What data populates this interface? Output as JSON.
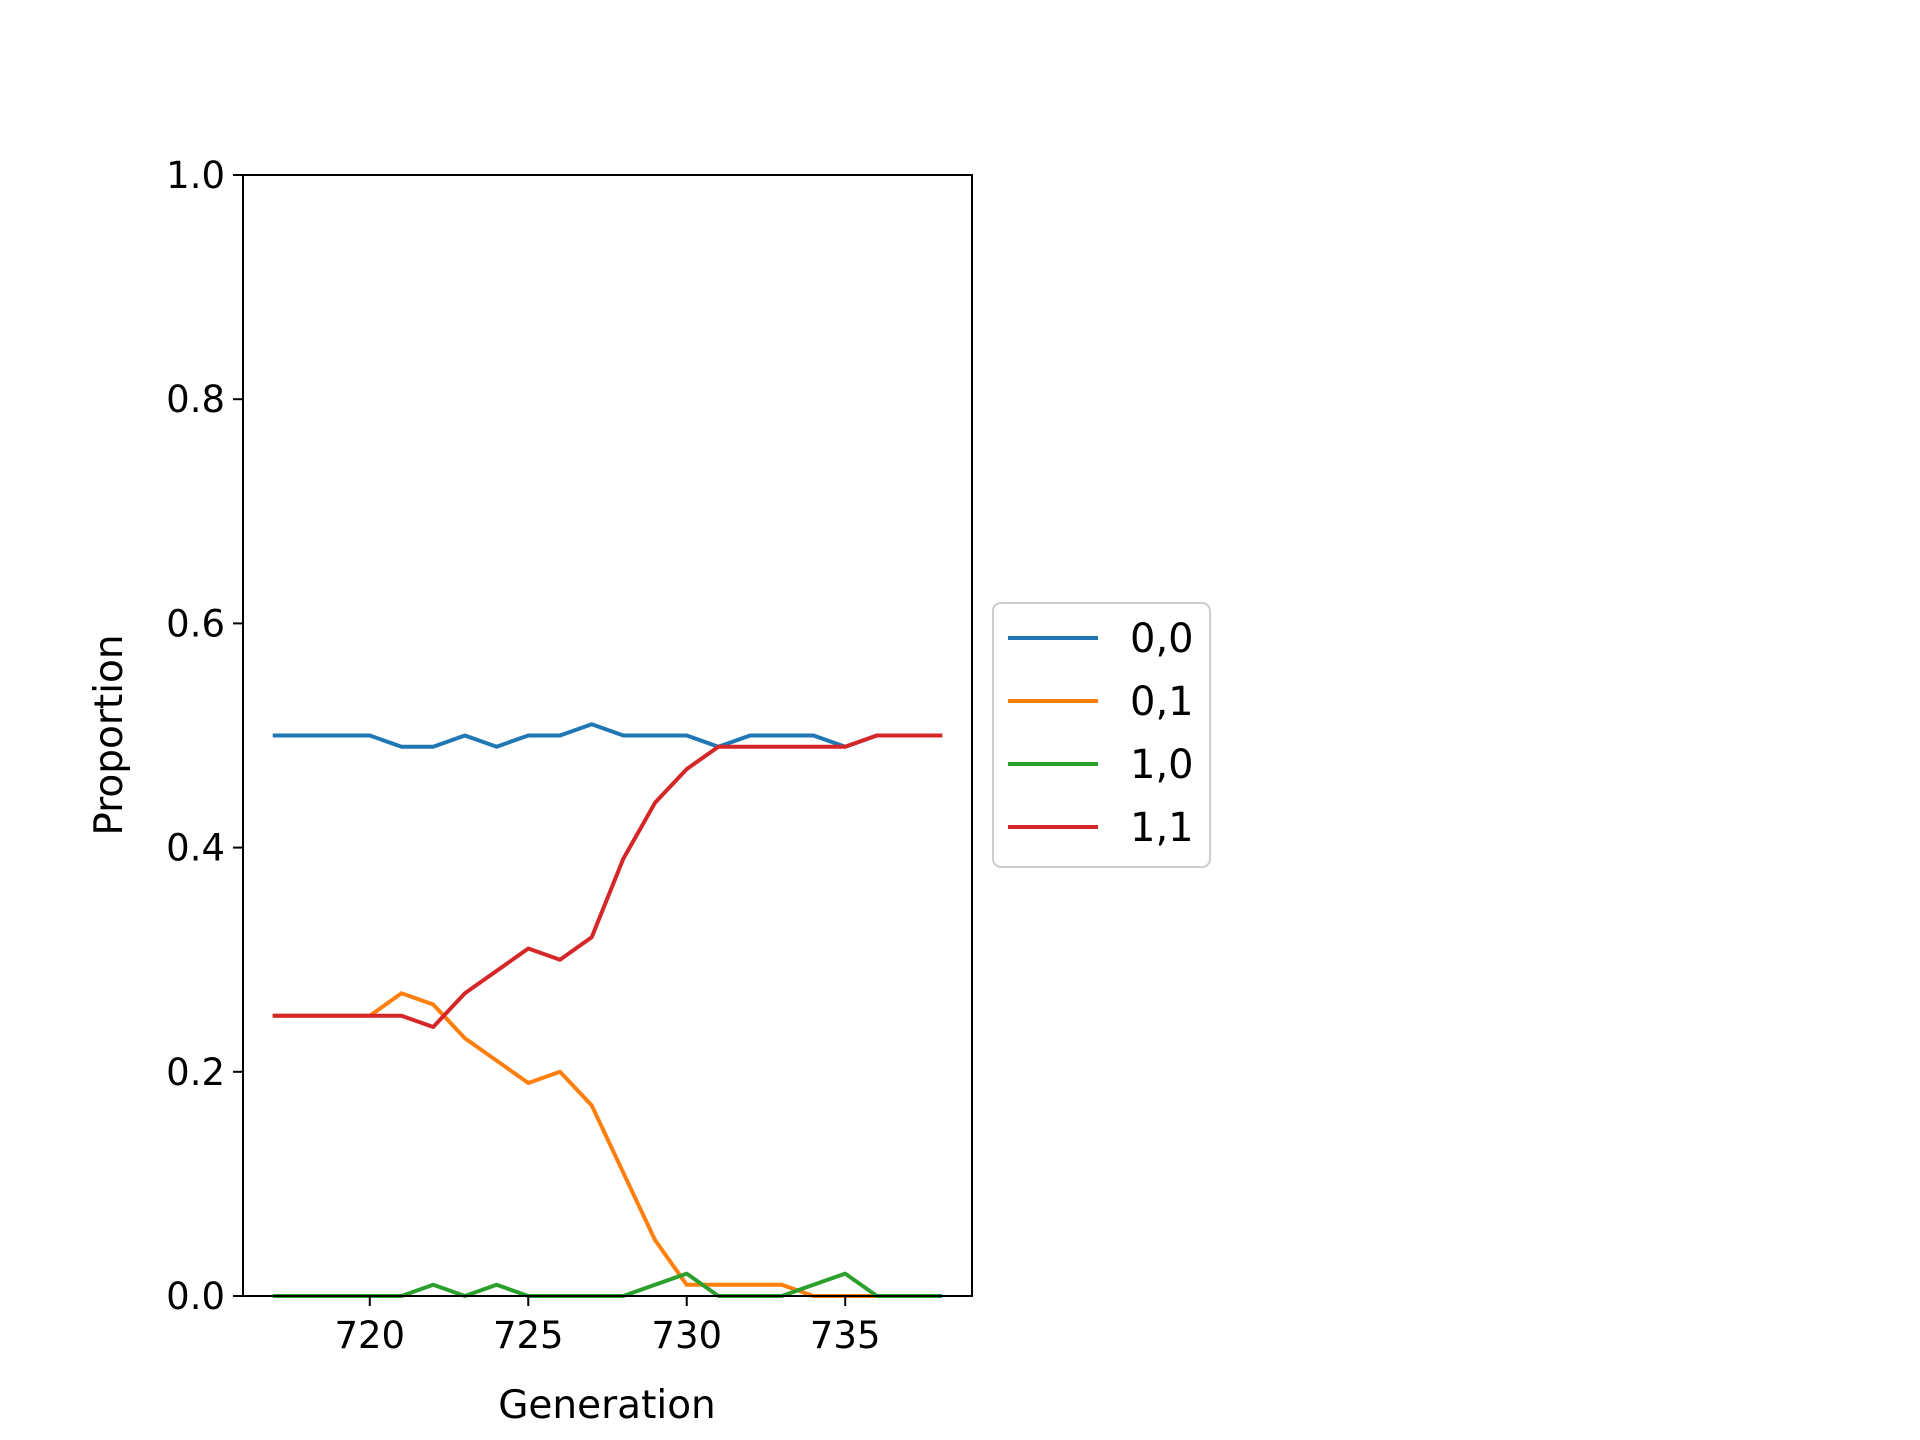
{
  "chart_data": {
    "type": "line",
    "xlabel": "Generation",
    "ylabel": "Proportion",
    "xlim": [
      716.0,
      739.0
    ],
    "ylim": [
      0.0,
      1.0
    ],
    "x_ticks": [
      720,
      725,
      730,
      735
    ],
    "y_ticks": [
      0.0,
      0.2,
      0.4,
      0.6,
      0.8,
      1.0
    ],
    "y_tick_labels": [
      "0.0",
      "0.2",
      "0.4",
      "0.6",
      "0.8",
      "1.0"
    ],
    "grid": false,
    "legend_position": "outside-right",
    "x": [
      717,
      718,
      719,
      720,
      721,
      722,
      723,
      724,
      725,
      726,
      727,
      728,
      729,
      730,
      731,
      732,
      733,
      734,
      735,
      736,
      737,
      738
    ],
    "series": [
      {
        "name": "0,0",
        "color": "#1f77b4",
        "values": [
          0.5,
          0.5,
          0.5,
          0.5,
          0.49,
          0.49,
          0.5,
          0.49,
          0.5,
          0.5,
          0.51,
          0.5,
          0.5,
          0.5,
          0.49,
          0.5,
          0.5,
          0.5,
          0.49,
          0.5,
          0.5,
          0.5
        ]
      },
      {
        "name": "0,1",
        "color": "#ff7f0e",
        "values": [
          0.25,
          0.25,
          0.25,
          0.25,
          0.27,
          0.26,
          0.23,
          0.21,
          0.19,
          0.2,
          0.17,
          0.11,
          0.05,
          0.01,
          0.01,
          0.01,
          0.01,
          0.0,
          0.0,
          0.0,
          0.0,
          0.0
        ]
      },
      {
        "name": "1,0",
        "color": "#2ca02c",
        "values": [
          0.0,
          0.0,
          0.0,
          0.0,
          0.0,
          0.01,
          0.0,
          0.01,
          0.0,
          0.0,
          0.0,
          0.0,
          0.01,
          0.02,
          0.0,
          0.0,
          0.0,
          0.01,
          0.02,
          0.0,
          0.0,
          0.0
        ]
      },
      {
        "name": "1,1",
        "color": "#d62728",
        "values": [
          0.25,
          0.25,
          0.25,
          0.25,
          0.25,
          0.24,
          0.27,
          0.29,
          0.31,
          0.3,
          0.32,
          0.39,
          0.44,
          0.47,
          0.49,
          0.49,
          0.49,
          0.49,
          0.49,
          0.5,
          0.5,
          0.5
        ]
      }
    ]
  }
}
